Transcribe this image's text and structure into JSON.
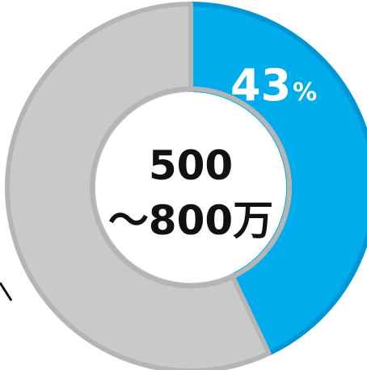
{
  "chart_data": {
    "type": "pie",
    "categories": [
      "500～800万",
      ""
    ],
    "values": [
      43,
      57
    ],
    "data_labels": {
      "value": "43",
      "unit": "%"
    },
    "center_text": {
      "line1": "500",
      "line2": "～800万"
    },
    "colors": {
      "highlight": "#00adec",
      "highlight_edge": "#0095d4",
      "rest": "#c9c9c9",
      "rest_edge": "#b5b5b5",
      "leader": "#111111"
    }
  }
}
